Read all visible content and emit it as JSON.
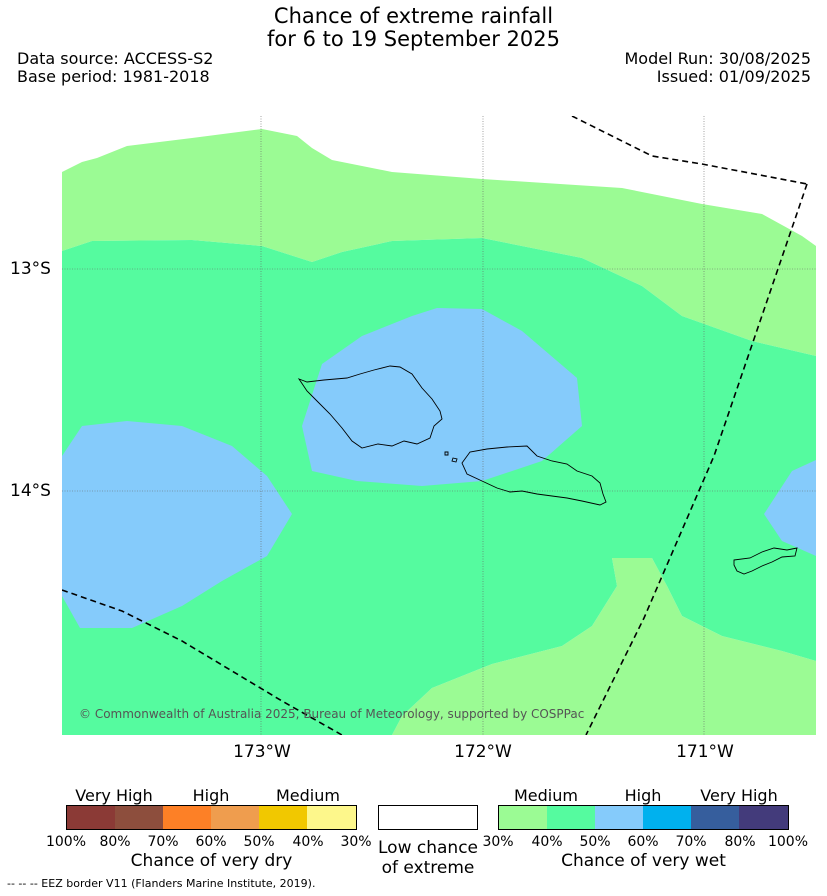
{
  "title": {
    "line1": "Chance of extreme rainfall",
    "line2": "for 6 to 19 September 2025"
  },
  "meta": {
    "data_source": "Data source: ACCESS-S2",
    "base_period": "Base period: 1981-2018",
    "model_run": "Model Run: 30/08/2025",
    "issued": "Issued: 01/09/2025"
  },
  "map": {
    "lat_labels": [
      "13°S",
      "14°S"
    ],
    "lon_labels": [
      "173°W",
      "172°W",
      "171°W"
    ],
    "copyright": "© Commonwealth of Australia 2025, Bureau of Meteorology, supported by COSPPac",
    "colors": {
      "p30_40": "#9bfb94",
      "p40_50": "#55fb9f",
      "p50_60": "#85cbfb",
      "land_outline": "#000000"
    }
  },
  "legend": {
    "dry": {
      "categories": [
        "Very High",
        "High",
        "Medium"
      ],
      "ticks": [
        "100%",
        "80%",
        "70%",
        "60%",
        "50%",
        "40%",
        "30%"
      ],
      "colors": [
        "#8b3a36",
        "#8d4e3d",
        "#fd8026",
        "#ef9d4e",
        "#f1c800",
        "#fdf78b"
      ],
      "title": "Chance of very dry"
    },
    "low": {
      "line1": "Low chance",
      "line2": "of extreme",
      "color": "#ffffff"
    },
    "wet": {
      "categories": [
        "Medium",
        "High",
        "Very High"
      ],
      "ticks": [
        "30%",
        "40%",
        "50%",
        "60%",
        "70%",
        "80%",
        "100%"
      ],
      "colors": [
        "#9bfb94",
        "#55fb9f",
        "#85cbfb",
        "#00b1ee",
        "#365e9d",
        "#433b7b"
      ],
      "title": "Chance of very wet"
    }
  },
  "footnote": "--  --  -- EEZ border V11 (Flanders Marine Institute, 2019)."
}
